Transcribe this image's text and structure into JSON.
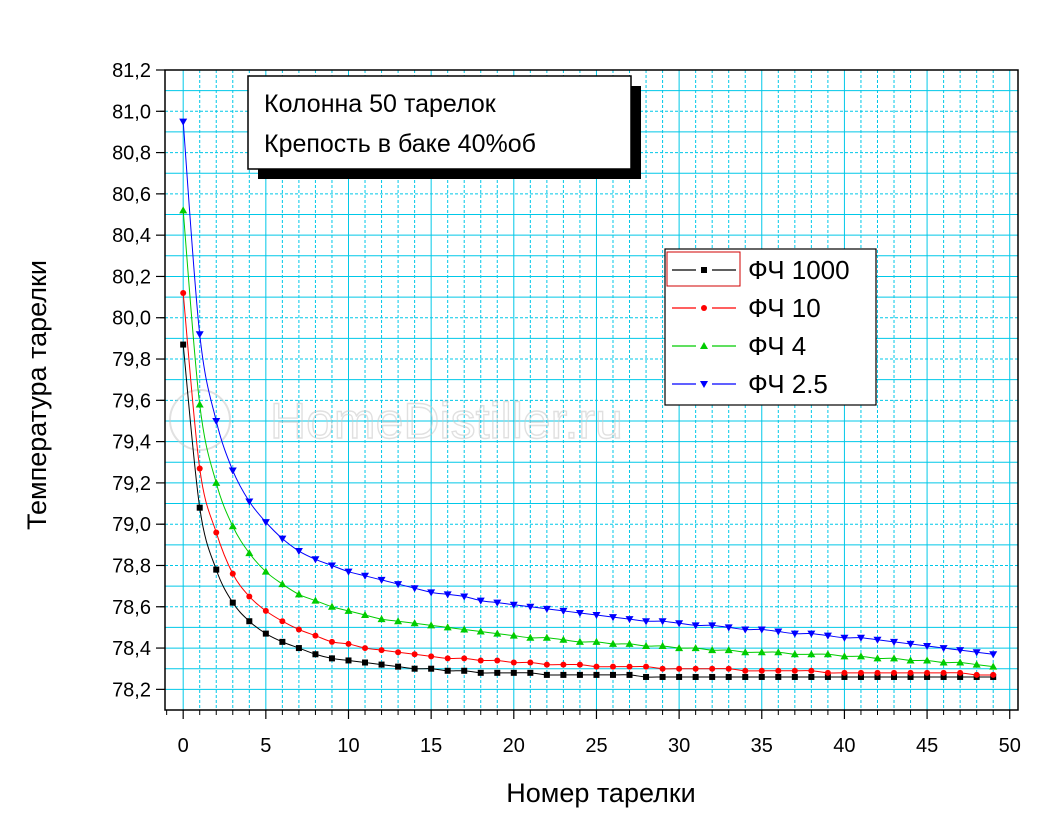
{
  "chart_data": {
    "type": "line",
    "xlabel": "Номер тарелки",
    "ylabel": "Температура тарелки",
    "xlim": [
      -1.1,
      50.5
    ],
    "ylim": [
      78.1,
      81.2
    ],
    "x_ticks": [
      "0",
      "5",
      "10",
      "15",
      "20",
      "25",
      "30",
      "35",
      "40",
      "45",
      "50"
    ],
    "y_ticks": [
      "78,2",
      "78,4",
      "78,6",
      "78,8",
      "79,0",
      "79,2",
      "79,4",
      "79,6",
      "79,8",
      "80,0",
      "80,2",
      "80,4",
      "80,6",
      "80,8",
      "81,0",
      "81,2"
    ],
    "grid": true,
    "legend_position": "right",
    "annotation_lines": [
      "Колонна 50 тарелок",
      "Крепость в баке 40%об"
    ],
    "watermark": "HomeDistiller.ru",
    "x": [
      0,
      1,
      2,
      3,
      4,
      5,
      6,
      7,
      8,
      9,
      10,
      11,
      12,
      13,
      14,
      15,
      16,
      17,
      18,
      19,
      20,
      21,
      22,
      23,
      24,
      25,
      26,
      27,
      28,
      29,
      30,
      31,
      32,
      33,
      34,
      35,
      36,
      37,
      38,
      39,
      40,
      41,
      42,
      43,
      44,
      45,
      46,
      47,
      48,
      49
    ],
    "series": [
      {
        "name": "ФЧ 1000",
        "color": "#000000",
        "marker": "square",
        "values": [
          79.87,
          79.08,
          78.78,
          78.62,
          78.53,
          78.47,
          78.43,
          78.4,
          78.37,
          78.35,
          78.34,
          78.33,
          78.32,
          78.31,
          78.3,
          78.3,
          78.29,
          78.29,
          78.28,
          78.28,
          78.28,
          78.28,
          78.27,
          78.27,
          78.27,
          78.27,
          78.27,
          78.27,
          78.26,
          78.26,
          78.26,
          78.26,
          78.26,
          78.26,
          78.26,
          78.26,
          78.26,
          78.26,
          78.26,
          78.26,
          78.26,
          78.26,
          78.26,
          78.26,
          78.26,
          78.26,
          78.26,
          78.26,
          78.26,
          78.26
        ]
      },
      {
        "name": "ФЧ 10",
        "color": "#ff0000",
        "marker": "circle",
        "values": [
          80.12,
          79.27,
          78.96,
          78.76,
          78.65,
          78.58,
          78.53,
          78.49,
          78.46,
          78.43,
          78.42,
          78.4,
          78.39,
          78.38,
          78.37,
          78.36,
          78.35,
          78.35,
          78.34,
          78.34,
          78.33,
          78.33,
          78.32,
          78.32,
          78.32,
          78.31,
          78.31,
          78.31,
          78.31,
          78.3,
          78.3,
          78.3,
          78.3,
          78.3,
          78.29,
          78.29,
          78.29,
          78.29,
          78.29,
          78.28,
          78.28,
          78.28,
          78.28,
          78.28,
          78.28,
          78.28,
          78.28,
          78.28,
          78.27,
          78.27
        ]
      },
      {
        "name": "ФЧ 4",
        "color": "#00cc00",
        "marker": "triangle-up",
        "values": [
          80.52,
          79.58,
          79.2,
          78.99,
          78.86,
          78.77,
          78.71,
          78.66,
          78.63,
          78.6,
          78.58,
          78.56,
          78.54,
          78.53,
          78.52,
          78.51,
          78.5,
          78.49,
          78.48,
          78.47,
          78.46,
          78.45,
          78.45,
          78.44,
          78.43,
          78.43,
          78.42,
          78.42,
          78.41,
          78.41,
          78.4,
          78.4,
          78.39,
          78.39,
          78.38,
          78.38,
          78.38,
          78.37,
          78.37,
          78.37,
          78.36,
          78.36,
          78.35,
          78.35,
          78.34,
          78.34,
          78.33,
          78.33,
          78.32,
          78.31
        ]
      },
      {
        "name": "ФЧ 2.5",
        "color": "#0000ff",
        "marker": "triangle-down",
        "values": [
          80.95,
          79.92,
          79.5,
          79.26,
          79.11,
          79.01,
          78.93,
          78.87,
          78.83,
          78.8,
          78.77,
          78.75,
          78.73,
          78.71,
          78.69,
          78.67,
          78.66,
          78.65,
          78.63,
          78.62,
          78.61,
          78.6,
          78.59,
          78.58,
          78.57,
          78.56,
          78.55,
          78.54,
          78.53,
          78.53,
          78.52,
          78.51,
          78.51,
          78.5,
          78.49,
          78.49,
          78.48,
          78.47,
          78.47,
          78.46,
          78.45,
          78.45,
          78.44,
          78.43,
          78.42,
          78.41,
          78.4,
          78.39,
          78.38,
          78.37
        ]
      }
    ]
  }
}
